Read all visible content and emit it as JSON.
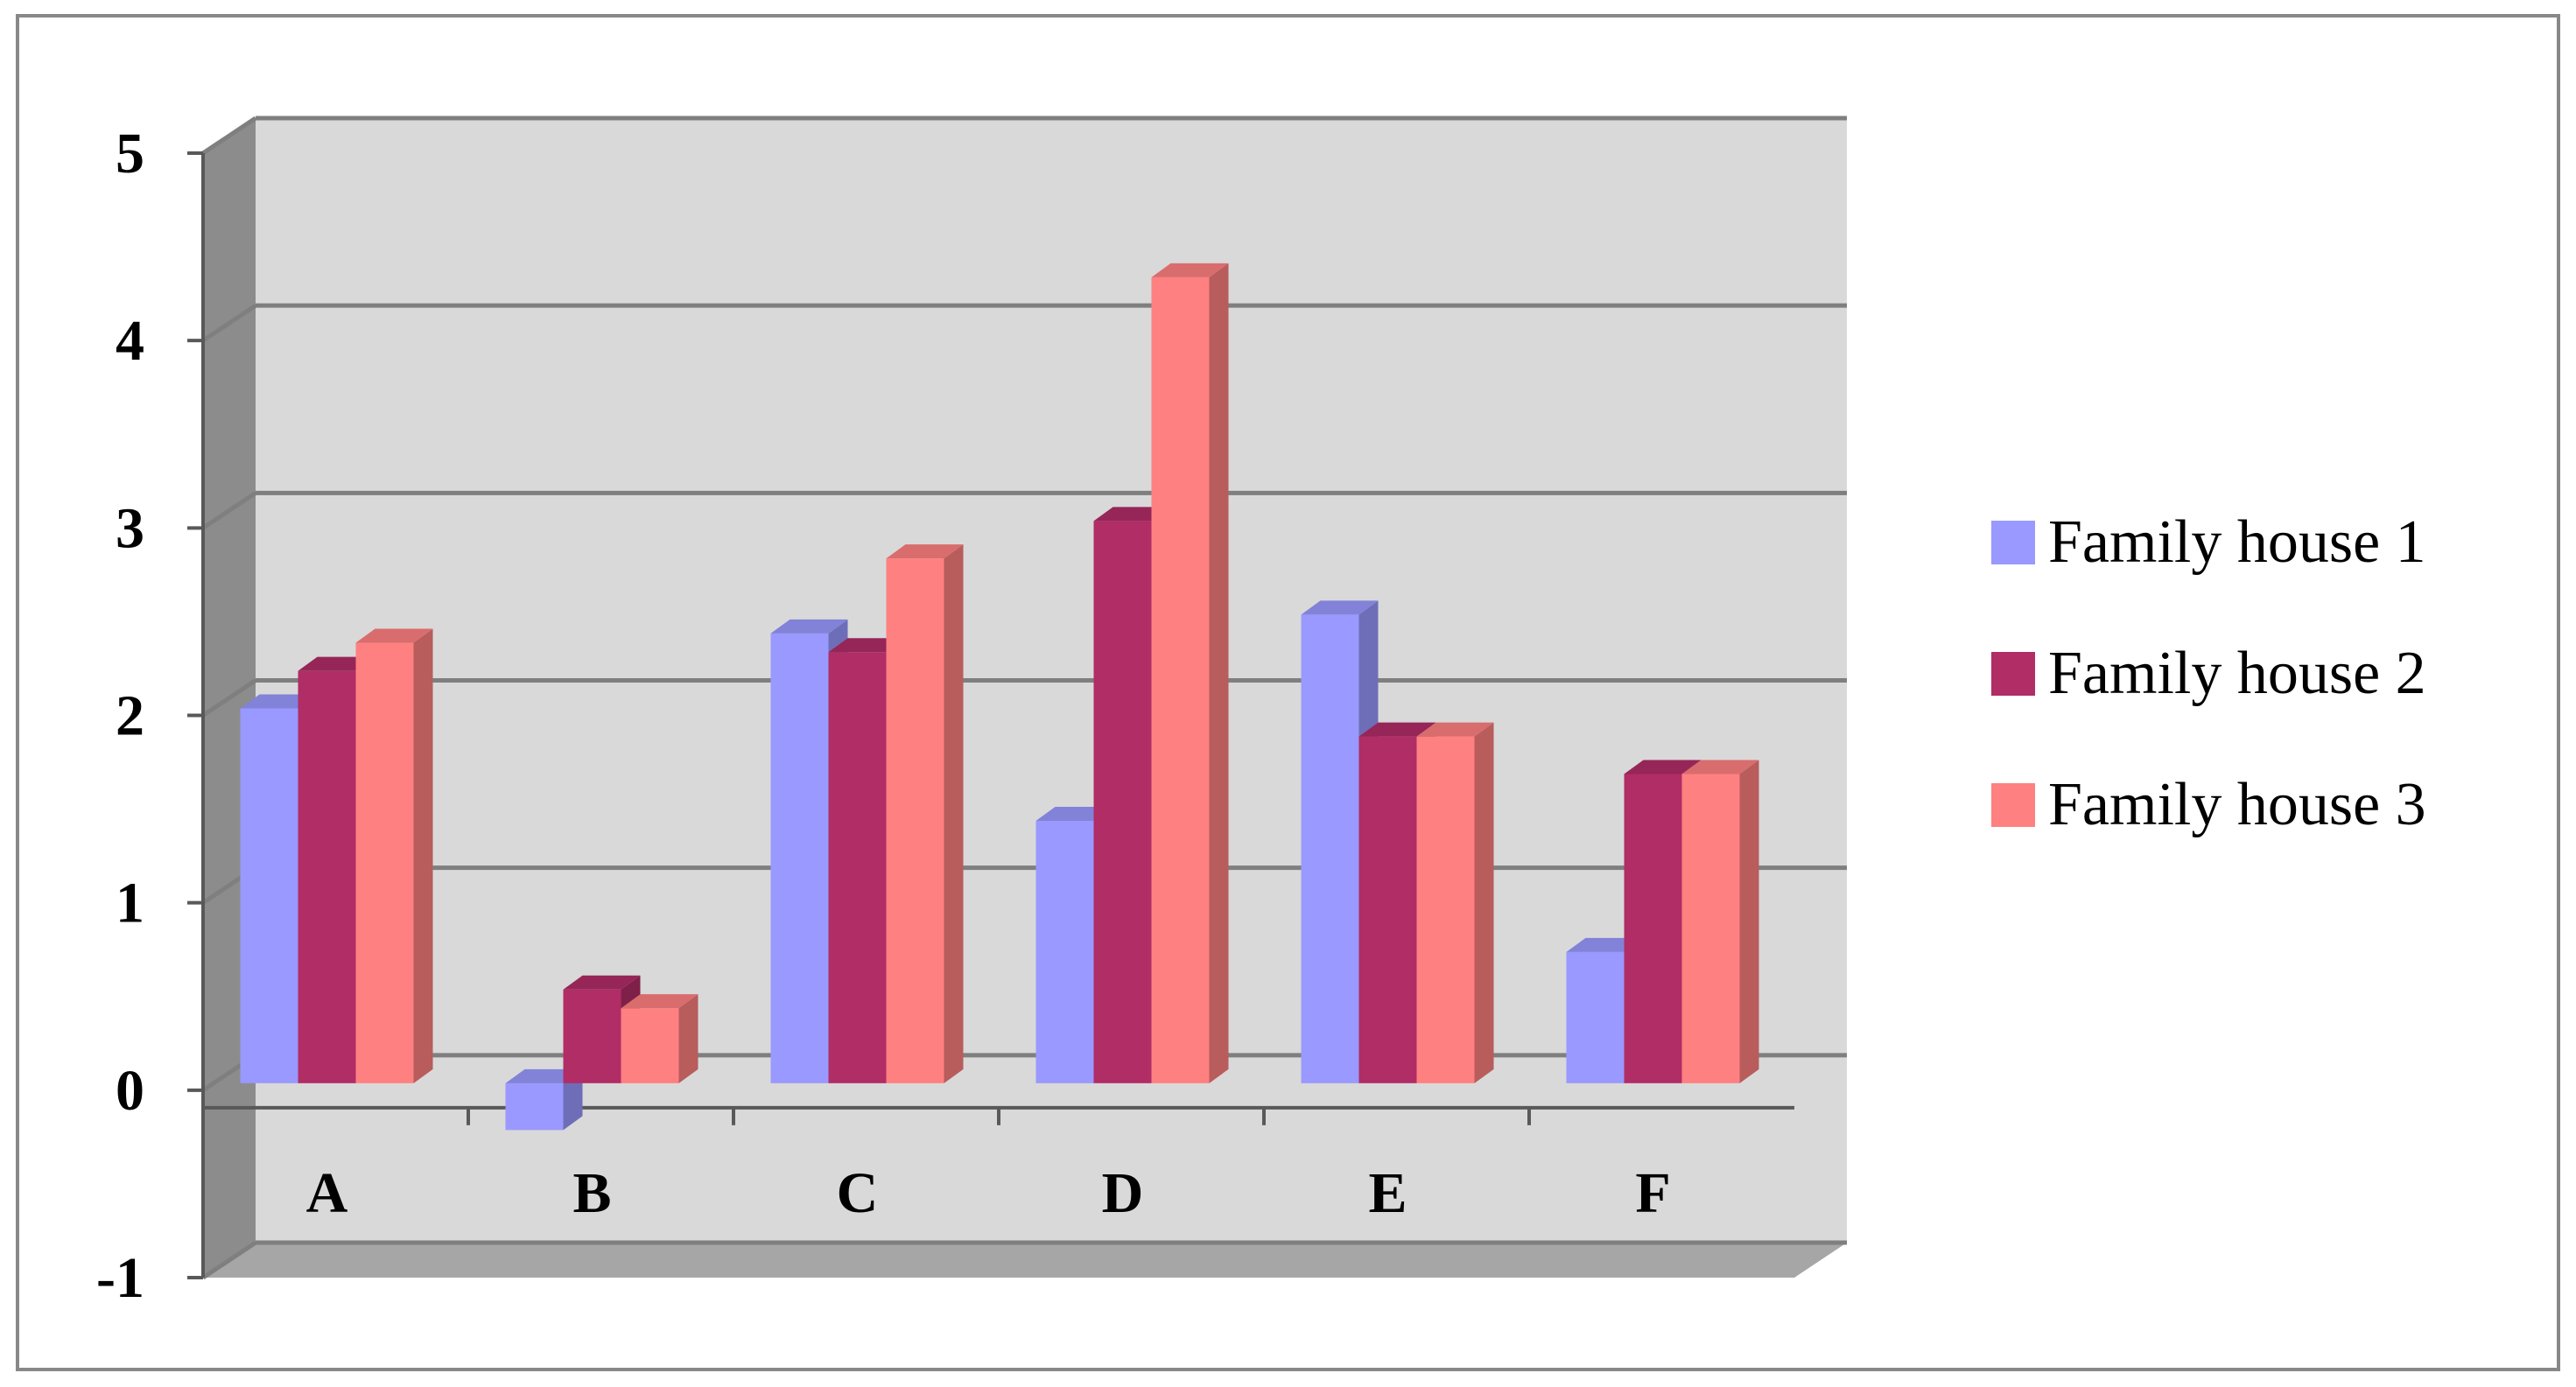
{
  "chart_data": {
    "type": "bar",
    "style": "3d-clustered-column",
    "categories": [
      "A",
      "B",
      "C",
      "D",
      "E",
      "F"
    ],
    "series": [
      {
        "name": "Family house 1",
        "values": [
          2.0,
          -0.25,
          2.4,
          1.4,
          2.5,
          0.7
        ],
        "color": "#9999ff"
      },
      {
        "name": "Family house 2",
        "values": [
          2.2,
          0.5,
          2.3,
          3.0,
          1.85,
          1.65
        ],
        "color": "#b02d66"
      },
      {
        "name": "Family house 3",
        "values": [
          2.35,
          0.4,
          2.8,
          4.3,
          1.85,
          1.65
        ],
        "color": "#ff8080"
      }
    ],
    "y_ticks": [
      "-1",
      "0",
      "1",
      "2",
      "3",
      "4",
      "5"
    ],
    "ylim": [
      -1,
      5
    ],
    "grid": true,
    "legend_position": "right",
    "title": "",
    "xlabel": "",
    "ylabel": ""
  }
}
